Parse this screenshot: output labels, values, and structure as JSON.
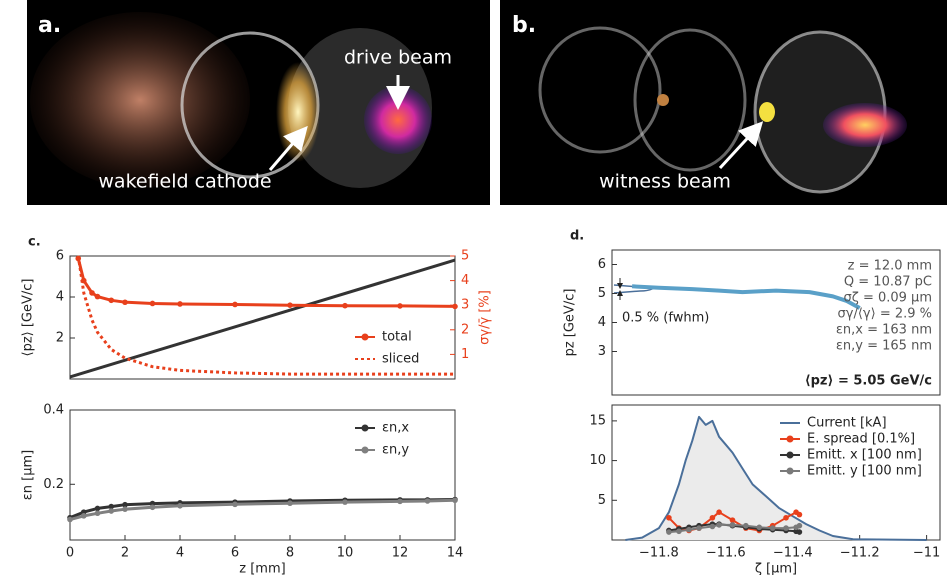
{
  "panels": [
    {
      "label": "a.",
      "annotations": [
        "drive beam",
        "wakefield cathode"
      ]
    },
    {
      "label": "b.",
      "annotations": [
        "witness beam"
      ]
    }
  ],
  "chart_data": [
    {
      "type": "line",
      "panel_label": "c.",
      "ylabel": "⟨pz⟩ [GeV/c]",
      "y2label": "σγ/γ̄ [%]",
      "y2color": "#e8401c",
      "xlim": [
        0,
        14
      ],
      "ylim": [
        0,
        6
      ],
      "yticks": [
        2,
        4,
        6
      ],
      "y2lim": [
        0,
        5
      ],
      "y2ticks": [
        1,
        2,
        3,
        4,
        5
      ],
      "legend": "lower right",
      "series": [
        {
          "color": "#333333",
          "x": [
            0,
            14
          ],
          "values": [
            0.1,
            5.8
          ]
        },
        {
          "name": "total",
          "color": "#e8401c",
          "axis": "y2",
          "marker": true,
          "x": [
            0.3,
            0.5,
            0.8,
            1,
            1.5,
            2,
            3,
            4,
            6,
            8,
            10,
            12,
            14
          ],
          "values": [
            4.9,
            4.0,
            3.5,
            3.35,
            3.2,
            3.12,
            3.07,
            3.05,
            3.03,
            3.0,
            2.98,
            2.97,
            2.95
          ]
        },
        {
          "name": "sliced",
          "color": "#e8401c",
          "axis": "y2",
          "dashed": true,
          "x": [
            0.3,
            0.5,
            0.8,
            1,
            1.5,
            2,
            3,
            4,
            6,
            8,
            10,
            12,
            14
          ],
          "values": [
            5,
            3.5,
            2.4,
            1.9,
            1.2,
            0.85,
            0.5,
            0.35,
            0.25,
            0.2,
            0.2,
            0.2,
            0.2
          ]
        }
      ]
    },
    {
      "type": "line",
      "xlabel": "z [mm]",
      "ylabel": "εn [μm]",
      "xlim": [
        0,
        14
      ],
      "xticks": [
        0,
        2,
        4,
        6,
        8,
        10,
        12,
        14
      ],
      "ylim": [
        0.05,
        0.4
      ],
      "yticks": [
        0.2,
        0.4
      ],
      "legend": "upper right",
      "series": [
        {
          "name": "εn,x",
          "color": "#333333",
          "marker": true,
          "x": [
            0,
            0.5,
            1,
            1.5,
            2,
            3,
            4,
            6,
            8,
            10,
            12,
            13,
            14
          ],
          "values": [
            0.11,
            0.125,
            0.135,
            0.14,
            0.145,
            0.148,
            0.15,
            0.152,
            0.155,
            0.157,
            0.158,
            0.158,
            0.159
          ]
        },
        {
          "name": "εn,y",
          "color": "#808080",
          "marker": true,
          "x": [
            0,
            0.5,
            1,
            1.5,
            2,
            3,
            4,
            6,
            8,
            10,
            12,
            13,
            14
          ],
          "values": [
            0.105,
            0.115,
            0.122,
            0.128,
            0.133,
            0.138,
            0.142,
            0.146,
            0.149,
            0.152,
            0.154,
            0.155,
            0.157
          ]
        }
      ]
    },
    {
      "type": "line",
      "panel_label": "d.",
      "ylabel": "pz [GeV/c]",
      "xlim": [
        -11.94,
        -10.96
      ],
      "ylim": [
        1.5,
        6.5
      ],
      "yticks": [
        3,
        4,
        5,
        6
      ],
      "stats": [
        "z =  12.0 mm",
        "Q = 10.87 pC",
        "σζ = 0.09 μm",
        "σγ/⟨γ⟩ =  2.9 %",
        "εn,x = 163 nm",
        "εn,y = 165 nm"
      ],
      "mean_label": "⟨pz⟩ =  5.05 GeV/c",
      "width_label": "0.5 % (fwhm)",
      "series": [
        {
          "color": "#5aa0c8",
          "x": [
            -11.88,
            -11.8,
            -11.7,
            -11.62,
            -11.55,
            -11.45,
            -11.35,
            -11.28,
            -11.24,
            -11.2
          ],
          "values": [
            5.25,
            5.2,
            5.15,
            5.1,
            5.05,
            5.1,
            5.05,
            4.9,
            4.75,
            4.5
          ]
        }
      ]
    },
    {
      "type": "line",
      "xlabel": "ζ [μm]",
      "xlim": [
        -11.94,
        -10.96
      ],
      "xticks": [
        {
          "value": -11.8,
          "label": "−11.8"
        },
        {
          "value": -11.6,
          "label": "−11.6"
        },
        {
          "value": -11.4,
          "label": "−11.4"
        },
        {
          "value": -11.2,
          "label": "−11.2"
        },
        {
          "value": -11,
          "label": "−11"
        }
      ],
      "ylim": [
        0,
        17
      ],
      "yticks": [
        5,
        10,
        15
      ],
      "legend": "upper right",
      "series": [
        {
          "name": "Current [kA]",
          "color": "#4a6f9a",
          "fill": "#ebebeb",
          "x": [
            -11.9,
            -11.85,
            -11.8,
            -11.77,
            -11.74,
            -11.72,
            -11.7,
            -11.68,
            -11.66,
            -11.64,
            -11.62,
            -11.6,
            -11.58,
            -11.55,
            -11.52,
            -11.48,
            -11.44,
            -11.4,
            -11.36,
            -11.32,
            -11.28,
            -11.22,
            -11.0
          ],
          "values": [
            0,
            0.3,
            1.5,
            3.5,
            7,
            10,
            12.5,
            15.5,
            14.5,
            15,
            13,
            12,
            11,
            9,
            7,
            5.5,
            4,
            3,
            2,
            1.2,
            0.5,
            0.1,
            0
          ]
        },
        {
          "name": "E. spread [0.1%]",
          "color": "#e8401c",
          "marker": true,
          "x": [
            -11.77,
            -11.74,
            -11.71,
            -11.68,
            -11.64,
            -11.62,
            -11.58,
            -11.54,
            -11.5,
            -11.46,
            -11.42,
            -11.39,
            -11.38
          ],
          "values": [
            2.8,
            1.5,
            1.2,
            1.5,
            2.8,
            3.5,
            2.5,
            1.5,
            1.2,
            1.8,
            2.8,
            3.5,
            3.2
          ]
        },
        {
          "name": "Emitt. x [100 nm]",
          "color": "#333333",
          "marker": true,
          "x": [
            -11.77,
            -11.74,
            -11.71,
            -11.68,
            -11.64,
            -11.62,
            -11.58,
            -11.54,
            -11.5,
            -11.46,
            -11.42,
            -11.39,
            -11.38
          ],
          "values": [
            1.2,
            1.4,
            1.6,
            1.8,
            2,
            2,
            1.8,
            1.6,
            1.4,
            1.3,
            1.2,
            1.1,
            1.0
          ]
        },
        {
          "name": "Emitt. y [100 nm]",
          "color": "#7a7a7a",
          "marker": true,
          "x": [
            -11.77,
            -11.74,
            -11.71,
            -11.68,
            -11.64,
            -11.62,
            -11.58,
            -11.54,
            -11.5,
            -11.46,
            -11.42,
            -11.39,
            -11.38
          ],
          "values": [
            1.0,
            1.1,
            1.3,
            1.5,
            1.7,
            1.9,
            1.9,
            1.8,
            1.6,
            1.5,
            1.5,
            1.6,
            1.8
          ]
        }
      ]
    }
  ]
}
